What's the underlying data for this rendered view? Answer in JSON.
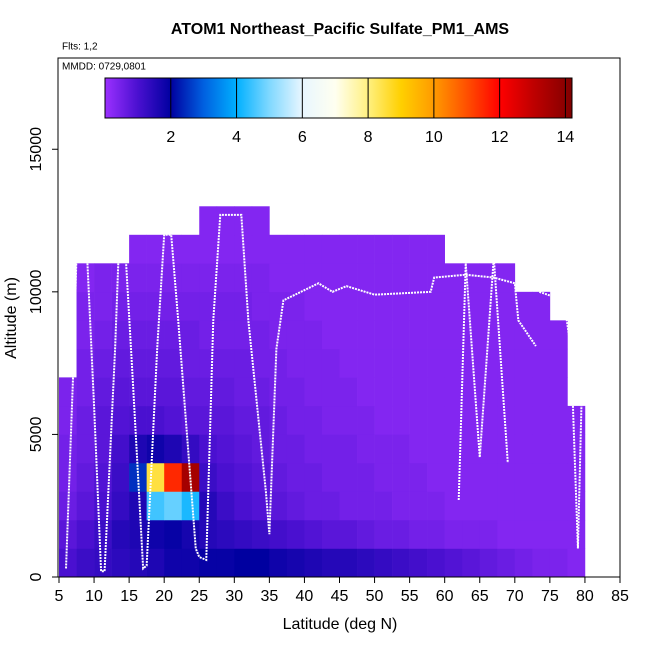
{
  "chart_data": {
    "type": "heatmap",
    "title": "ATOM1 Northeast_Pacific Sulfate_PM1_AMS",
    "note_flights": "Flts: 1,2",
    "note_dates": "MMDD: 0729,0801",
    "xlabel": "Latitude (deg N)",
    "ylabel": "Altitude (m)",
    "xlim": [
      5,
      85
    ],
    "xticks": [
      5,
      10,
      15,
      20,
      25,
      30,
      35,
      40,
      45,
      50,
      55,
      60,
      65,
      70,
      75,
      80,
      85
    ],
    "ylim": [
      0,
      18200
    ],
    "yticks": [
      0,
      5000,
      10000,
      15000
    ],
    "x_bins": [
      5,
      7.5,
      10,
      12.5,
      15,
      17.5,
      20,
      22.5,
      25,
      27.5,
      30,
      32.5,
      35,
      37.5,
      40,
      42.5,
      45,
      47.5,
      50,
      52.5,
      55,
      57.5,
      60,
      62.5,
      65,
      67.5,
      70,
      72.5,
      75,
      77.5,
      80
    ],
    "y_bins": [
      0,
      1000,
      2000,
      3000,
      4000,
      5000,
      6000,
      7000,
      8000,
      9000,
      10000,
      11000,
      12000,
      13000
    ],
    "z": [
      [
        1.0,
        1.2,
        1.3,
        1.4,
        1.5,
        1.6,
        1.8,
        1.8,
        1.9,
        1.9,
        2.0,
        2.0,
        1.8,
        1.7,
        1.6,
        1.5,
        1.5,
        1.4,
        1.3,
        1.2,
        1.1,
        1.0,
        0.9,
        0.8,
        0.7,
        0.6,
        0.5,
        0.4,
        0.4,
        0.3
      ],
      [
        0.8,
        1.0,
        1.2,
        1.5,
        1.6,
        1.8,
        1.9,
        1.7,
        1.5,
        1.4,
        1.3,
        1.2,
        1.1,
        1.0,
        0.9,
        0.8,
        0.8,
        0.7,
        0.6,
        0.6,
        0.5,
        0.5,
        0.4,
        0.4,
        0.4,
        0.3,
        0.3,
        0.3,
        0.3,
        0.3
      ],
      [
        0.6,
        0.8,
        1.0,
        1.3,
        1.6,
        4.5,
        4.8,
        4.2,
        1.5,
        1.2,
        1.0,
        0.9,
        0.8,
        0.7,
        0.6,
        0.6,
        0.5,
        0.5,
        0.5,
        0.4,
        0.4,
        0.4,
        0.3,
        0.3,
        0.3,
        0.3,
        0.3,
        0.3,
        0.3,
        0.3
      ],
      [
        0.5,
        0.7,
        0.9,
        1.2,
        2.5,
        8.5,
        11.5,
        13.5,
        1.2,
        1.0,
        0.9,
        0.8,
        0.7,
        0.6,
        0.6,
        0.5,
        0.5,
        0.5,
        0.4,
        0.4,
        0.4,
        0.3,
        0.3,
        0.3,
        0.3,
        0.3,
        0.3,
        0.3,
        0.3,
        0.3
      ],
      [
        0.5,
        0.6,
        0.8,
        1.1,
        1.6,
        1.8,
        1.6,
        1.3,
        1.0,
        0.9,
        0.8,
        0.7,
        0.6,
        0.6,
        0.5,
        0.5,
        0.5,
        0.4,
        0.4,
        0.4,
        0.3,
        0.3,
        0.3,
        0.3,
        0.3,
        0.3,
        0.3,
        0.3,
        0.3,
        0.3
      ],
      [
        0.4,
        0.6,
        0.8,
        0.9,
        1.0,
        1.0,
        0.9,
        0.8,
        0.8,
        0.8,
        0.7,
        0.7,
        0.6,
        0.5,
        0.5,
        0.4,
        0.4,
        0.4,
        0.3,
        0.3,
        0.3,
        0.3,
        0.3,
        0.3,
        0.3,
        0.3,
        0.3,
        0.3,
        0.3,
        0.3
      ],
      [
        0.4,
        0.5,
        0.7,
        0.8,
        0.8,
        0.8,
        0.8,
        0.7,
        0.7,
        0.7,
        0.6,
        0.6,
        0.5,
        0.5,
        0.4,
        0.4,
        0.4,
        0.3,
        0.3,
        0.3,
        0.3,
        0.3,
        0.3,
        0.3,
        0.3,
        0.3,
        0.3,
        0.3,
        0.3,
        null
      ],
      [
        null,
        0.5,
        0.6,
        0.7,
        0.7,
        0.7,
        0.7,
        0.6,
        0.6,
        0.6,
        0.6,
        0.5,
        0.5,
        0.4,
        0.4,
        0.4,
        0.3,
        0.3,
        0.3,
        0.3,
        0.3,
        0.3,
        0.3,
        0.3,
        0.3,
        0.3,
        0.3,
        0.3,
        0.3,
        null
      ],
      [
        null,
        0.4,
        0.5,
        0.6,
        0.6,
        0.6,
        0.6,
        0.6,
        0.5,
        0.5,
        0.5,
        0.5,
        0.4,
        0.4,
        0.4,
        0.3,
        0.3,
        0.3,
        0.3,
        0.3,
        0.3,
        0.3,
        0.3,
        0.3,
        0.3,
        0.3,
        0.3,
        0.3,
        0.3,
        null
      ],
      [
        null,
        0.4,
        0.4,
        0.5,
        0.5,
        0.5,
        0.5,
        0.5,
        0.5,
        0.5,
        0.5,
        0.4,
        0.4,
        0.4,
        0.3,
        0.3,
        0.3,
        0.3,
        0.3,
        0.3,
        0.3,
        0.3,
        0.3,
        0.3,
        0.3,
        0.3,
        0.3,
        0.3,
        null,
        null
      ],
      [
        null,
        0.3,
        0.4,
        0.4,
        0.4,
        0.4,
        0.4,
        0.4,
        0.4,
        0.4,
        0.4,
        0.4,
        0.3,
        0.3,
        0.3,
        0.3,
        0.3,
        0.3,
        0.3,
        0.3,
        0.3,
        0.3,
        0.3,
        0.3,
        0.3,
        0.3,
        null,
        null,
        null,
        null
      ],
      [
        null,
        null,
        null,
        null,
        0.3,
        0.3,
        0.3,
        0.3,
        0.3,
        0.3,
        0.3,
        0.3,
        0.3,
        0.3,
        0.3,
        0.3,
        0.3,
        0.3,
        0.3,
        0.3,
        0.3,
        0.3,
        null,
        null,
        null,
        null,
        null,
        null,
        null,
        null
      ],
      [
        null,
        null,
        null,
        null,
        null,
        null,
        null,
        null,
        0.3,
        0.3,
        0.3,
        0.3,
        null,
        null,
        null,
        null,
        null,
        null,
        null,
        null,
        null,
        null,
        null,
        null,
        null,
        null,
        null,
        null,
        null,
        null
      ]
    ],
    "zlim": [
      0,
      14.2
    ],
    "zticks": [
      2,
      4,
      6,
      8,
      10,
      12,
      14
    ],
    "colormap": {
      "stops": [
        0,
        1,
        2,
        3,
        4,
        5,
        6,
        7,
        8,
        9,
        10,
        11,
        12,
        13,
        14.2
      ],
      "colors": [
        "#9b30ff",
        "#4a10d0",
        "#0000a0",
        "#0060e0",
        "#00b0ff",
        "#80d8ff",
        "#e8f6ff",
        "#fffff0",
        "#fff080",
        "#ffd000",
        "#ff9a00",
        "#ff5000",
        "#ff0000",
        "#c00000",
        "#800000"
      ]
    },
    "track": {
      "color": "#ffffff",
      "x": [
        6,
        7,
        7.5,
        9,
        10,
        11,
        11.5,
        13,
        13.5,
        14.5,
        15.5,
        17,
        17.5,
        19,
        20,
        21,
        22,
        24.5,
        25,
        26,
        27,
        28,
        31,
        32,
        34.5,
        35,
        36,
        37,
        42,
        44,
        45,
        46,
        50,
        58,
        58.5,
        63,
        67,
        70,
        70.5,
        73,
        null,
        62,
        63,
        65,
        67,
        69,
        null,
        73.5,
        77,
        78,
        79,
        79.5
      ],
      "y": [
        300,
        7000,
        11300,
        11300,
        6000,
        200,
        200,
        8000,
        11300,
        11300,
        7000,
        300,
        400,
        8000,
        12000,
        12000,
        9000,
        1000,
        700,
        600,
        9000,
        12700,
        12700,
        9000,
        3000,
        1500,
        8000,
        9700,
        10300,
        10000,
        10100,
        10200,
        9900,
        10000,
        10500,
        10600,
        10500,
        10300,
        9000,
        8100,
        null,
        2700,
        11000,
        4200,
        11200,
        4000,
        null,
        10000,
        9700,
        8000,
        1000,
        6000
      ]
    }
  }
}
